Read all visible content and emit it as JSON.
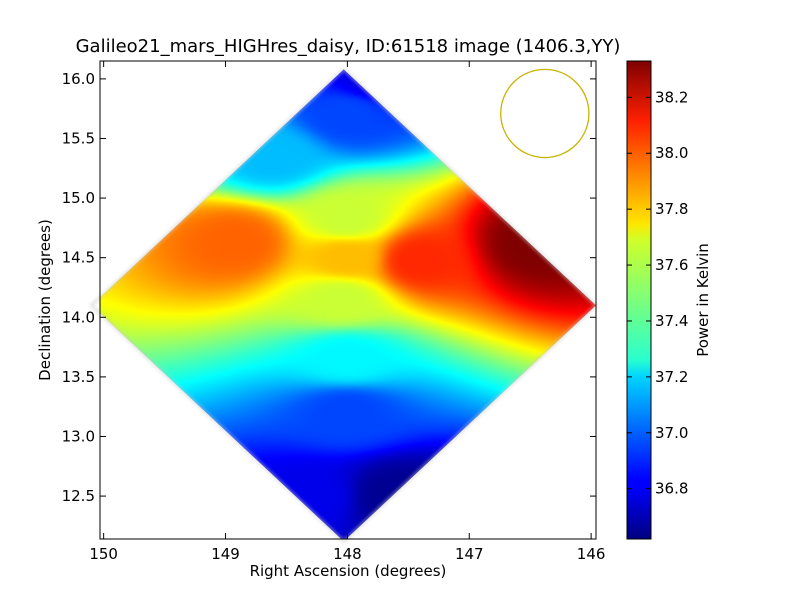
{
  "chart_data": {
    "type": "heatmap",
    "title": "Galileo21_mars_HIGHres_daisy, ID:61518 image (1406.3,YY)",
    "xlabel": "Right Ascension (degrees)",
    "ylabel": "Declination (degrees)",
    "xlim": [
      150.03,
      145.96
    ],
    "ylim": [
      12.14,
      16.15
    ],
    "x_ticks": [
      150,
      149,
      148,
      147,
      146
    ],
    "x_tick_labels": [
      "150",
      "149",
      "148",
      "147",
      "146"
    ],
    "y_ticks": [
      12.5,
      13.0,
      13.5,
      14.0,
      14.5,
      15.0,
      15.5,
      16.0
    ],
    "y_tick_labels": [
      "12.5",
      "13.0",
      "13.5",
      "14.0",
      "14.5",
      "15.0",
      "15.5",
      "16.0"
    ],
    "colorbar": {
      "label": "Power in Kelvin",
      "vmin": 36.62,
      "vmax": 38.33,
      "ticks": [
        36.8,
        37.0,
        37.2,
        37.4,
        37.6,
        37.8,
        38.0,
        38.2
      ],
      "tick_labels": [
        "36.8",
        "37.0",
        "37.2",
        "37.4",
        "37.6",
        "37.8",
        "38.0",
        "38.2"
      ],
      "colormap": "jet"
    },
    "footprint": {
      "shape": "diamond",
      "center": [
        148.03,
        14.1
      ],
      "half_width_ra": 2.07,
      "half_height_dec": 1.98
    },
    "features": [
      {
        "ra": 146.45,
        "dec": 14.62,
        "value": 38.33
      },
      {
        "ra": 147.42,
        "dec": 14.48,
        "value": 38.05
      },
      {
        "ra": 148.9,
        "dec": 14.63,
        "value": 37.95
      },
      {
        "ra": 148.0,
        "dec": 14.5,
        "value": 37.8
      },
      {
        "ra": 148.05,
        "dec": 14.15,
        "value": 37.6
      },
      {
        "ra": 148.0,
        "dec": 14.82,
        "value": 37.6
      },
      {
        "ra": 148.6,
        "dec": 15.35,
        "value": 37.15
      },
      {
        "ra": 148.0,
        "dec": 13.65,
        "value": 37.25
      },
      {
        "ra": 148.0,
        "dec": 15.7,
        "value": 36.95
      },
      {
        "ra": 147.8,
        "dec": 16.0,
        "value": 36.8
      },
      {
        "ra": 148.0,
        "dec": 13.2,
        "value": 36.95
      },
      {
        "ra": 147.6,
        "dec": 12.5,
        "value": 36.65
      },
      {
        "ra": 148.3,
        "dec": 12.5,
        "value": 36.8
      }
    ],
    "beam": {
      "ra": 146.38,
      "dec": 15.71,
      "radius_dec": 0.37,
      "color": "#c8b400"
    },
    "grid": false,
    "legend": "none"
  }
}
